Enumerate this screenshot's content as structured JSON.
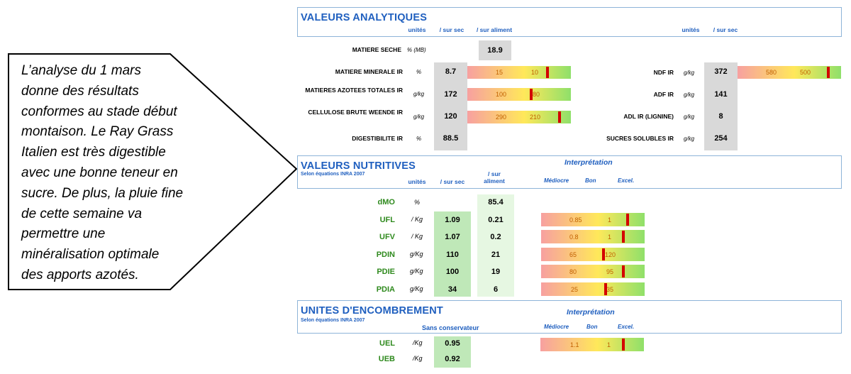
{
  "callout": {
    "lines": [
      "L’analyse du 1 mars",
      "donne des résultats",
      "conformes au stade début",
      "montaison. Le Ray Grass",
      "Italien est très digestible",
      "avec une bonne teneur en",
      "sucre. De plus, la pluie fine",
      "de cette semaine va",
      "permettre une",
      "minéralisation optimale",
      "des apports azotés."
    ]
  },
  "analytiques": {
    "title": "VALEURS ANALYTIQUES",
    "col_unites": "unités",
    "col_sursec": "/ sur sec",
    "col_suraliment": "/ sur aliment",
    "col_unites2": "unités",
    "col_sursec2": "/ sur sec",
    "matiere_seche": {
      "label": "MATIERE SECHE",
      "unit": "% (MB)",
      "value": "18.9"
    },
    "left_rows": [
      {
        "label": "MATIERE MINERALE IR",
        "unit": "%",
        "value": "8.7",
        "low": "15",
        "high": "10",
        "marker": 0.76
      },
      {
        "label": "MATIERES AZOTEES TOTALES IR",
        "unit": "g/kg",
        "value": "172",
        "low": "100",
        "high": "80",
        "marker": 0.6
      },
      {
        "label": "CELLULOSE BRUTE WEENDE IR",
        "unit": "g/kg",
        "value": "120",
        "low": "290",
        "high": "210",
        "marker": 0.88
      },
      {
        "label": "DIGESTIBILITE IR",
        "unit": "%",
        "value": "88.5"
      }
    ],
    "right_rows": [
      {
        "label": "NDF IR",
        "unit": "g/kg",
        "value": "372",
        "low": "580",
        "high": "500",
        "marker": 0.86
      },
      {
        "label": "ADF IR",
        "unit": "g/kg",
        "value": "141"
      },
      {
        "label": "ADL IR (LIGNINE)",
        "unit": "g/kg",
        "value": "8"
      },
      {
        "label": "SUCRES SOLUBLES IR",
        "unit": "g/kg",
        "value": "254"
      }
    ]
  },
  "nutritives": {
    "title": "VALEURS NUTRITIVES",
    "subtitle": "Selon équations INRA 2007",
    "interpretation": "Interprétation",
    "col_unites": "unités",
    "col_sursec": "/ sur sec",
    "col_suraliment": "/ sur aliment",
    "scale_mediocre": "Médiocre",
    "scale_bon": "Bon",
    "scale_excel": "Excel.",
    "dmo": {
      "label": "dMO",
      "unit": "%",
      "value": "85.4"
    },
    "rows": [
      {
        "label": "UFL",
        "unit": "/ Kg",
        "sec": "1.09",
        "ali": "0.21",
        "low": "0.85",
        "high": "1",
        "marker": 0.82
      },
      {
        "label": "UFV",
        "unit": "/ Kg",
        "sec": "1.07",
        "ali": "0.2",
        "low": "0.8",
        "high": "1",
        "marker": 0.78
      },
      {
        "label": "PDIN",
        "unit": "g/Kg",
        "sec": "110",
        "ali": "21",
        "low": "65",
        "high": "120",
        "marker": 0.59
      },
      {
        "label": "PDIE",
        "unit": "g/Kg",
        "sec": "100",
        "ali": "19",
        "low": "80",
        "high": "95",
        "marker": 0.78
      },
      {
        "label": "PDIA",
        "unit": "g/Kg",
        "sec": "34",
        "ali": "6",
        "low": "25",
        "high": "35",
        "marker": 0.61
      }
    ]
  },
  "encombrement": {
    "title": "UNITES D'ENCOMBREMENT",
    "subtitle": "Selon équations INRA 2007",
    "interpretation": "Interprétation",
    "col_sans": "Sans conservateur",
    "scale_mediocre": "Médiocre",
    "scale_bon": "Bon",
    "scale_excel": "Excel.",
    "rows": [
      {
        "label": "UEL",
        "unit": "/Kg",
        "value": "0.95",
        "low": "1.1",
        "high": "1",
        "marker": 0.79
      },
      {
        "label": "UEB",
        "unit": "/Kg",
        "value": "0.92"
      }
    ]
  },
  "colors": {
    "blue": "#1f5fbf",
    "green_text": "#2f8a1e",
    "marker": "#d40000"
  }
}
